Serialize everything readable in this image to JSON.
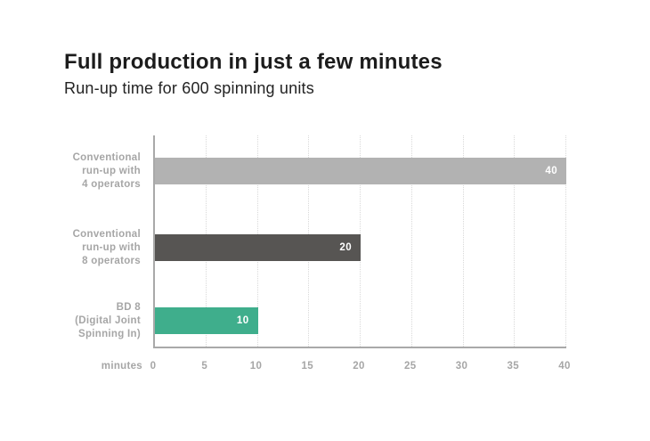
{
  "header": {
    "title": "Full production in just a few minutes",
    "subtitle": "Run-up time for 600 spinning units"
  },
  "chart_data": {
    "type": "bar",
    "orientation": "horizontal",
    "title": "Full production in just a few minutes",
    "subtitle": "Run-up time for 600 spinning units",
    "categories": [
      "Conventional run-up with 4 operators",
      "Conventional run-up with 8 operators",
      "BD 8 (Digital Joint Spinning In)"
    ],
    "category_lines": [
      [
        "Conventional",
        "run-up with",
        "4 operators"
      ],
      [
        "Conventional",
        "run-up with",
        "8 operators"
      ],
      [
        "BD 8",
        "(Digital Joint",
        "Spinning In)"
      ]
    ],
    "values": [
      40,
      20,
      10
    ],
    "value_labels": [
      "40",
      "20",
      "10"
    ],
    "bar_colors": [
      "#b2b2b2",
      "#575553",
      "#3fae8c"
    ],
    "value_label_color": "#ffffff",
    "xlabel": "minutes",
    "xticks": [
      0,
      5,
      10,
      15,
      20,
      25,
      30,
      35,
      40
    ],
    "xlim": [
      0,
      40
    ],
    "grid": "vertical-dotted",
    "legend": "none"
  },
  "style_colors": {
    "title_text": "#1c1c1c",
    "subtitle_text": "#232323",
    "axis_text": "#a6a6a6",
    "axis_line": "#a9a9a9",
    "gridline": "#d9d9d9",
    "background": "#ffffff"
  }
}
